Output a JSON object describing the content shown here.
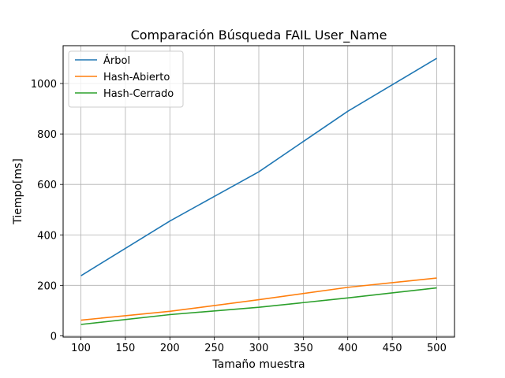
{
  "chart_data": {
    "type": "line",
    "title": "Comparación Búsqueda FAIL User_Name",
    "xlabel": "Tamaño muestra",
    "ylabel": "Tiempo[ms]",
    "x": [
      100,
      200,
      300,
      400,
      500
    ],
    "xlim": [
      80,
      520
    ],
    "ylim": [
      -5,
      1150
    ],
    "xticks": [
      100,
      150,
      200,
      250,
      300,
      350,
      400,
      450,
      500
    ],
    "yticks": [
      0,
      200,
      400,
      600,
      800,
      1000
    ],
    "grid": true,
    "legend_position": "top-left",
    "series": [
      {
        "name": "Árbol",
        "color": "#1f77b4",
        "values": [
          238,
          455,
          650,
          890,
          1100
        ]
      },
      {
        "name": "Hash-Abierto",
        "color": "#ff7f0e",
        "values": [
          62,
          97,
          143,
          192,
          229
        ]
      },
      {
        "name": "Hash-Cerrado",
        "color": "#2ca02c",
        "values": [
          45,
          84,
          113,
          150,
          190
        ]
      }
    ]
  }
}
